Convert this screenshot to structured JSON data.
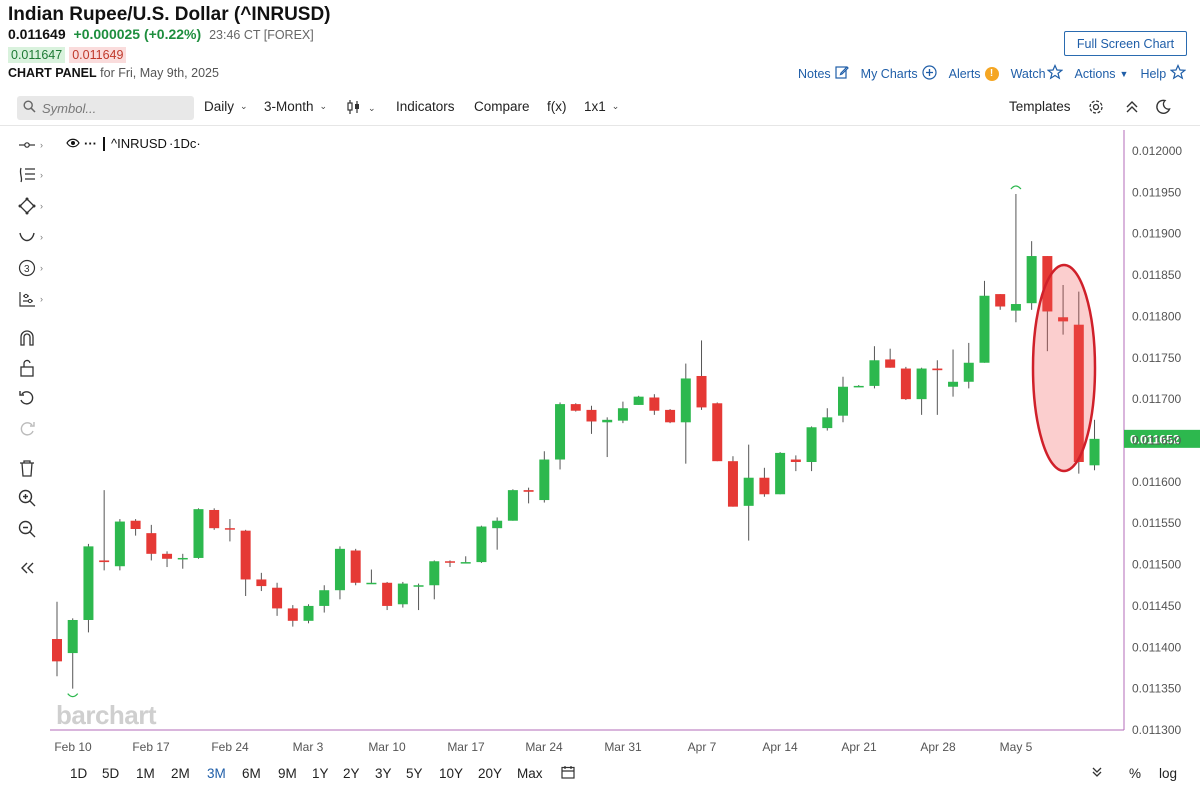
{
  "header": {
    "title": "Indian Rupee/U.S. Dollar (^INRUSD)",
    "last": "0.011649",
    "change": "+0.000025 (+0.22%)",
    "time": "23:46 CT [FOREX]",
    "bid": "0.011647",
    "ask": "0.011649",
    "panel_label": "CHART PANEL",
    "panel_date": "for Fri, May 9th, 2025",
    "fullscreen": "Full Screen Chart"
  },
  "links": {
    "notes": "Notes",
    "mycharts": "My Charts",
    "alerts": "Alerts",
    "alert_badge": "!",
    "watch": "Watch",
    "actions": "Actions",
    "help": "Help"
  },
  "toolbar": {
    "search_placeholder": "Symbol...",
    "period": "Daily",
    "range": "3-Month",
    "indicators": "Indicators",
    "compare": "Compare",
    "fx": "f(x)",
    "layout": "1x1",
    "templates": "Templates"
  },
  "legend": {
    "symbol": "^INRUSD",
    "interval": "·1Dc·"
  },
  "watermark": "barchart",
  "bottom": {
    "ranges": [
      "1D",
      "5D",
      "1M",
      "2M",
      "3M",
      "6M",
      "9M",
      "1Y",
      "2Y",
      "3Y",
      "5Y",
      "10Y",
      "20Y",
      "Max"
    ],
    "active": "3M",
    "percent": "%",
    "log": "log"
  },
  "colors": {
    "up": "#2db84e",
    "down": "#e53935",
    "accent": "#1f5ea8",
    "last_price_bg": "#2db84e",
    "highlight_ellipse": "#d0202a"
  },
  "chart_data": {
    "type": "candlestick",
    "symbol": "^INRUSD",
    "ylim": [
      0.0113,
      0.012
    ],
    "y_ticks": [
      "0.012000",
      "0.011950",
      "0.011900",
      "0.011850",
      "0.011800",
      "0.011750",
      "0.011700",
      "0.011650",
      "0.011600",
      "0.011550",
      "0.011500",
      "0.011450",
      "0.011400",
      "0.011350",
      "0.011300"
    ],
    "x_ticks": [
      "Feb 10",
      "Feb 17",
      "Feb 24",
      "Mar 3",
      "Mar 10",
      "Mar 17",
      "Mar 24",
      "Mar 31",
      "Apr 7",
      "Apr 14",
      "Apr 21",
      "Apr 28",
      "May 5"
    ],
    "last_price_label": "0.011652",
    "candles": [
      {
        "o": 0.01141,
        "h": 0.011455,
        "l": 0.011365,
        "c": 0.011383
      },
      {
        "o": 0.011393,
        "h": 0.011435,
        "l": 0.01135,
        "c": 0.011433
      },
      {
        "o": 0.011433,
        "h": 0.011525,
        "l": 0.011418,
        "c": 0.011522
      },
      {
        "o": 0.011505,
        "h": 0.01159,
        "l": 0.011493,
        "c": 0.011503
      },
      {
        "o": 0.011498,
        "h": 0.011555,
        "l": 0.011493,
        "c": 0.011552
      },
      {
        "o": 0.011553,
        "h": 0.011555,
        "l": 0.011535,
        "c": 0.011543
      },
      {
        "o": 0.011538,
        "h": 0.011548,
        "l": 0.011505,
        "c": 0.011513
      },
      {
        "o": 0.011513,
        "h": 0.011516,
        "l": 0.011497,
        "c": 0.011507
      },
      {
        "o": 0.011507,
        "h": 0.011513,
        "l": 0.011495,
        "c": 0.011508
      },
      {
        "o": 0.011508,
        "h": 0.011568,
        "l": 0.011507,
        "c": 0.011567
      },
      {
        "o": 0.011566,
        "h": 0.011568,
        "l": 0.011542,
        "c": 0.011544
      },
      {
        "o": 0.011544,
        "h": 0.011555,
        "l": 0.011528,
        "c": 0.011543
      },
      {
        "o": 0.011541,
        "h": 0.011542,
        "l": 0.011462,
        "c": 0.011482
      },
      {
        "o": 0.011482,
        "h": 0.01149,
        "l": 0.011468,
        "c": 0.011474
      },
      {
        "o": 0.011472,
        "h": 0.011478,
        "l": 0.011438,
        "c": 0.011447
      },
      {
        "o": 0.011447,
        "h": 0.011451,
        "l": 0.011425,
        "c": 0.011432
      },
      {
        "o": 0.011432,
        "h": 0.011452,
        "l": 0.011429,
        "c": 0.01145
      },
      {
        "o": 0.01145,
        "h": 0.011475,
        "l": 0.011442,
        "c": 0.011469
      },
      {
        "o": 0.011469,
        "h": 0.011522,
        "l": 0.011458,
        "c": 0.011519
      },
      {
        "o": 0.011517,
        "h": 0.011519,
        "l": 0.011475,
        "c": 0.011478
      },
      {
        "o": 0.011477,
        "h": 0.011494,
        "l": 0.011477,
        "c": 0.011478
      },
      {
        "o": 0.011478,
        "h": 0.011479,
        "l": 0.011445,
        "c": 0.01145
      },
      {
        "o": 0.011452,
        "h": 0.011479,
        "l": 0.011448,
        "c": 0.011477
      },
      {
        "o": 0.011475,
        "h": 0.011477,
        "l": 0.011445,
        "c": 0.011475
      },
      {
        "o": 0.011475,
        "h": 0.011505,
        "l": 0.011458,
        "c": 0.011504
      },
      {
        "o": 0.011504,
        "h": 0.011505,
        "l": 0.011497,
        "c": 0.011503
      },
      {
        "o": 0.011503,
        "h": 0.01151,
        "l": 0.011502,
        "c": 0.011503
      },
      {
        "o": 0.011503,
        "h": 0.011547,
        "l": 0.011502,
        "c": 0.011546
      },
      {
        "o": 0.011544,
        "h": 0.011557,
        "l": 0.011518,
        "c": 0.011553
      },
      {
        "o": 0.011553,
        "h": 0.011591,
        "l": 0.011553,
        "c": 0.01159
      },
      {
        "o": 0.01159,
        "h": 0.011593,
        "l": 0.011574,
        "c": 0.011588
      },
      {
        "o": 0.011578,
        "h": 0.011637,
        "l": 0.011575,
        "c": 0.011627
      },
      {
        "o": 0.011627,
        "h": 0.011696,
        "l": 0.011615,
        "c": 0.011694
      },
      {
        "o": 0.011694,
        "h": 0.011695,
        "l": 0.011685,
        "c": 0.011686
      },
      {
        "o": 0.011687,
        "h": 0.011692,
        "l": 0.011658,
        "c": 0.011673
      },
      {
        "o": 0.011672,
        "h": 0.011678,
        "l": 0.01163,
        "c": 0.011675
      },
      {
        "o": 0.011674,
        "h": 0.011697,
        "l": 0.011671,
        "c": 0.011689
      },
      {
        "o": 0.011693,
        "h": 0.011704,
        "l": 0.011693,
        "c": 0.011703
      },
      {
        "o": 0.011702,
        "h": 0.011706,
        "l": 0.011681,
        "c": 0.011686
      },
      {
        "o": 0.011687,
        "h": 0.011688,
        "l": 0.011671,
        "c": 0.011672
      },
      {
        "o": 0.011672,
        "h": 0.011743,
        "l": 0.011622,
        "c": 0.011725
      },
      {
        "o": 0.011728,
        "h": 0.011771,
        "l": 0.011687,
        "c": 0.01169
      },
      {
        "o": 0.011695,
        "h": 0.011696,
        "l": 0.011625,
        "c": 0.011625
      },
      {
        "o": 0.011625,
        "h": 0.011631,
        "l": 0.01157,
        "c": 0.01157
      },
      {
        "o": 0.011571,
        "h": 0.011645,
        "l": 0.011529,
        "c": 0.011605
      },
      {
        "o": 0.011605,
        "h": 0.011617,
        "l": 0.011582,
        "c": 0.011585
      },
      {
        "o": 0.011585,
        "h": 0.011636,
        "l": 0.011585,
        "c": 0.011635
      },
      {
        "o": 0.011627,
        "h": 0.011632,
        "l": 0.011613,
        "c": 0.011624
      },
      {
        "o": 0.011624,
        "h": 0.011667,
        "l": 0.011613,
        "c": 0.011666
      },
      {
        "o": 0.011665,
        "h": 0.011689,
        "l": 0.011662,
        "c": 0.011678
      },
      {
        "o": 0.01168,
        "h": 0.011727,
        "l": 0.011672,
        "c": 0.011715
      },
      {
        "o": 0.011715,
        "h": 0.011717,
        "l": 0.011715,
        "c": 0.011716
      },
      {
        "o": 0.011716,
        "h": 0.011764,
        "l": 0.011713,
        "c": 0.011747
      },
      {
        "o": 0.011748,
        "h": 0.011761,
        "l": 0.011738,
        "c": 0.011738
      },
      {
        "o": 0.011737,
        "h": 0.011739,
        "l": 0.011699,
        "c": 0.0117
      },
      {
        "o": 0.0117,
        "h": 0.011738,
        "l": 0.011681,
        "c": 0.011737
      },
      {
        "o": 0.011737,
        "h": 0.011747,
        "l": 0.011681,
        "c": 0.011735
      },
      {
        "o": 0.011715,
        "h": 0.01176,
        "l": 0.011703,
        "c": 0.011721
      },
      {
        "o": 0.011721,
        "h": 0.011768,
        "l": 0.011713,
        "c": 0.011744
      },
      {
        "o": 0.011744,
        "h": 0.011843,
        "l": 0.011744,
        "c": 0.011825
      },
      {
        "o": 0.011827,
        "h": 0.011827,
        "l": 0.011808,
        "c": 0.011812
      },
      {
        "o": 0.011807,
        "h": 0.011948,
        "l": 0.011793,
        "c": 0.011815
      },
      {
        "o": 0.011816,
        "h": 0.011891,
        "l": 0.011808,
        "c": 0.011873
      },
      {
        "o": 0.011873,
        "h": 0.011873,
        "l": 0.011758,
        "c": 0.011806
      },
      {
        "o": 0.011799,
        "h": 0.011838,
        "l": 0.011778,
        "c": 0.011794
      },
      {
        "o": 0.01179,
        "h": 0.01183,
        "l": 0.01161,
        "c": 0.011624
      },
      {
        "o": 0.01162,
        "h": 0.011675,
        "l": 0.011614,
        "c": 0.011652
      }
    ]
  }
}
